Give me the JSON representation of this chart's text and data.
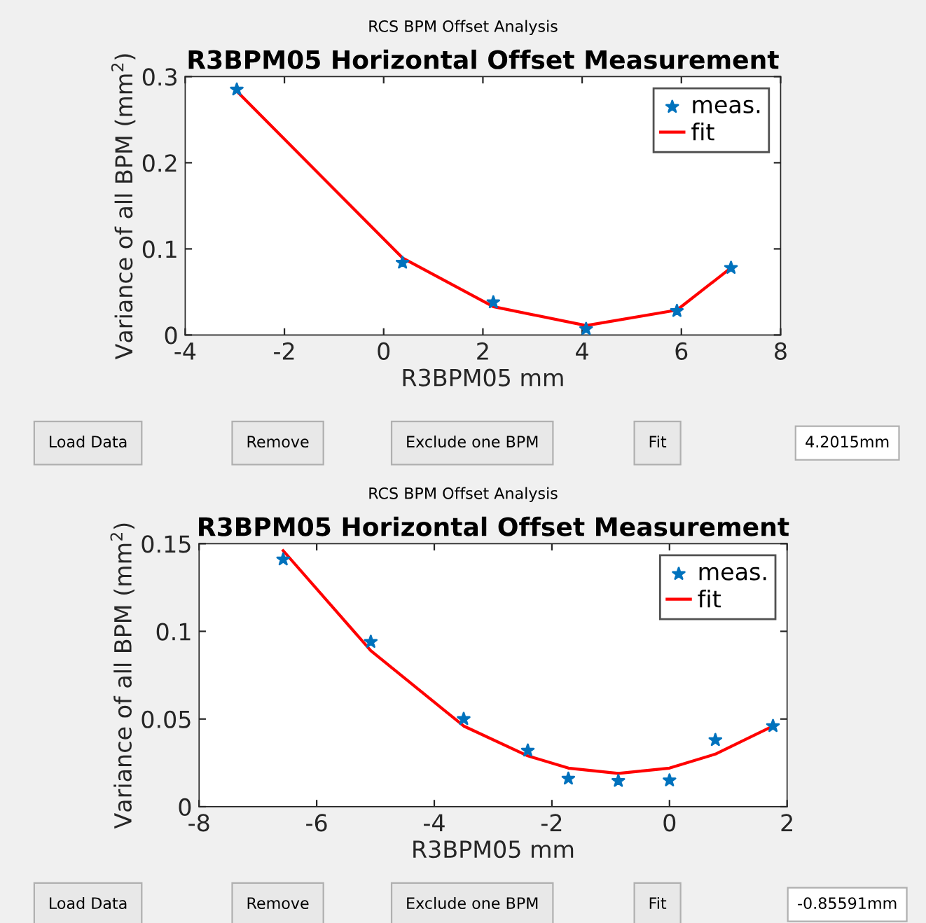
{
  "chart_data": [
    {
      "type": "line",
      "title": "R3BPM05 Horizontal Offset Measurement",
      "annotations": [
        "RCS BPM Offset Analysis"
      ],
      "xlabel": "R3BPM05 mm",
      "ylabel": "Variance of all BPM (mm$^{2}$)",
      "xlim": [
        -4,
        8
      ],
      "xticks": [
        -4,
        -2,
        0,
        2,
        4,
        6,
        8
      ],
      "ylim": [
        0,
        0.3
      ],
      "yticks": [
        0,
        0.1,
        0.2,
        0.3
      ],
      "grid": false,
      "legend": "top right",
      "series": [
        {
          "name": "meas.",
          "type": "scatter",
          "marker": "star",
          "color": "#0072bd",
          "x": [
            -2.96,
            0.38,
            2.21,
            4.08,
            5.91,
            7.0
          ],
          "values": [
            0.285,
            0.084,
            0.038,
            0.007,
            0.028,
            0.078
          ]
        },
        {
          "name": "fit",
          "type": "line",
          "marker": "none",
          "line_style": "solid",
          "color": "#ff0000",
          "x": [
            -2.96,
            0.38,
            2.21,
            4.08,
            5.91,
            7.0
          ],
          "values": [
            0.283,
            0.0895,
            0.033,
            0.011,
            0.029,
            0.078
          ]
        }
      ]
    },
    {
      "type": "other",
      "annotations": [
        "Load Data",
        "Remove",
        "Exclude one BPM",
        "Fit",
        "4.2015mm"
      ]
    },
    {
      "type": "line",
      "title": "R3BPM05 Horizontal Offset Measurement",
      "annotations": [
        "RCS BPM Offset Analysis"
      ],
      "xlabel": "R3BPM05 mm",
      "ylabel": "Variance of all BPM (mm$^{2}$)",
      "xlim": [
        -8,
        2
      ],
      "xticks": [
        -8,
        -6,
        -4,
        -2,
        0,
        2
      ],
      "ylim": [
        0,
        0.15
      ],
      "yticks": [
        0,
        {
          "value": 0.05,
          "label": "0.05"
        },
        {
          "value": 0.1,
          "label": "0.1"
        },
        {
          "value": 0.15,
          "label": "0.15"
        }
      ],
      "grid": false,
      "legend": "top right",
      "series": [
        {
          "name": "meas.",
          "type": "scatter",
          "marker": "star",
          "color": "#0072bd",
          "x": [
            -6.57,
            -5.08,
            -3.5,
            -2.41,
            -1.72,
            -0.87,
            0.0,
            0.78,
            1.76
          ],
          "values": [
            0.141,
            0.094,
            0.05,
            0.032,
            0.016,
            0.0147,
            0.015,
            0.038,
            0.046
          ]
        },
        {
          "name": "fit",
          "type": "line",
          "marker": "none",
          "line_style": "solid",
          "color": "#ff0000",
          "x": [
            -6.57,
            -5.08,
            -3.5,
            -2.41,
            -1.72,
            -0.87,
            0.0,
            0.78,
            1.76
          ],
          "values": [
            0.146,
            0.089,
            0.046,
            0.029,
            0.022,
            0.019,
            0.022,
            0.03,
            0.046
          ]
        }
      ]
    },
    {
      "type": "other",
      "annotations": [
        "Load Data",
        "Remove",
        "Exclude one BPM",
        "Fit",
        "-0.85591mm"
      ]
    }
  ]
}
